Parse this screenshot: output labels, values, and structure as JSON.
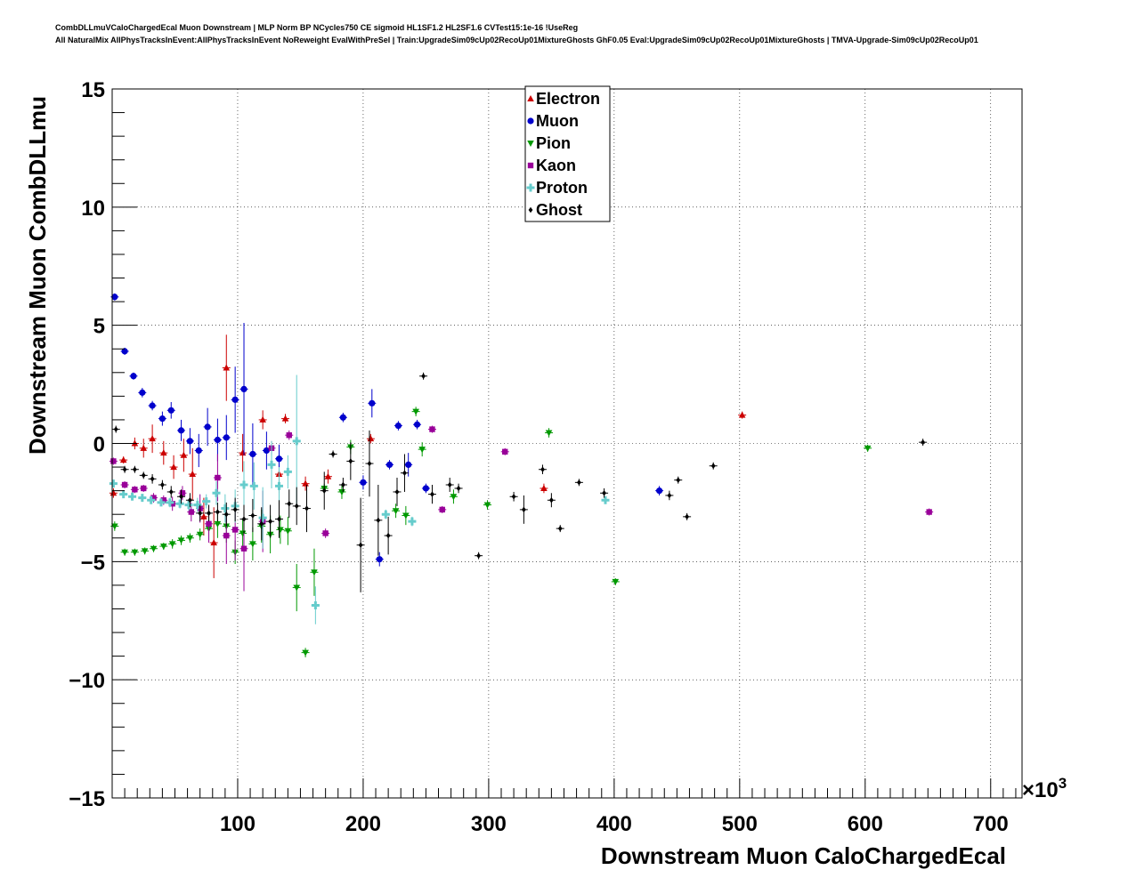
{
  "header": {
    "title_line1": "CombDLLmuVCaloChargedEcal Muon Downstream | MLP Norm BP NCycles750 CE sigmoid HL1SF1.2 HL2SF1.6 CVTest15:1e-16 !UseReg",
    "title_line2": "All NaturalMix AllPhysTracksInEvent:AllPhysTracksInEvent NoReweight EvalWithPreSel | Train:UpgradeSim09cUp02RecoUp01MixtureGhosts GhF0.05 Eval:UpgradeSim09cUp02RecoUp01MixtureGhosts | TMVA-Upgrade-Sim09cUp02RecoUp01"
  },
  "chart_data": {
    "type": "scatter",
    "xlabel": "Downstream Muon CaloChargedEcal",
    "ylabel": "Downstream Muon CombDLLmu",
    "x_multiplier": "×10",
    "x_multiplier_exp": "3",
    "xlim": [
      0,
      725
    ],
    "ylim": [
      -15,
      15
    ],
    "x_ticks": [
      100,
      200,
      300,
      400,
      500,
      600,
      700
    ],
    "y_ticks": [
      -15,
      -10,
      -5,
      0,
      5,
      10,
      15
    ],
    "y_tick_labels": [
      "−15",
      "−10",
      "−5",
      "0",
      "5",
      "10",
      "15"
    ],
    "grid": true,
    "legend_position": "top-center",
    "series": [
      {
        "name": "Electron",
        "color": "#cc0000",
        "marker": "triangle",
        "points": [
          [
            1,
            -2.1,
            0.2
          ],
          [
            9,
            -0.7,
            0.15
          ],
          [
            18,
            0.0,
            0.25
          ],
          [
            25,
            -0.2,
            0.4
          ],
          [
            32,
            0.2,
            0.6
          ],
          [
            41,
            -0.4,
            0.5
          ],
          [
            49,
            -1.0,
            0.5
          ],
          [
            57,
            -0.5,
            0.7
          ],
          [
            64,
            -1.3,
            1.1
          ],
          [
            73,
            -3.1,
            0.8
          ],
          [
            81,
            -4.2,
            1.5
          ],
          [
            91,
            3.2,
            1.4
          ],
          [
            104,
            -0.4,
            0.8
          ],
          [
            120,
            1.0,
            0.4
          ],
          [
            133,
            -1.3,
            0.8
          ],
          [
            138,
            1.05,
            0.2
          ],
          [
            154,
            -1.7,
            0.3
          ],
          [
            172,
            -1.4,
            0.3
          ],
          [
            206,
            0.2,
            0.2
          ],
          [
            344,
            -1.9,
            0.2
          ],
          [
            502,
            1.2,
            0.15
          ]
        ]
      },
      {
        "name": "Muon",
        "color": "#0000cc",
        "marker": "circle",
        "points": [
          [
            2,
            6.2,
            0.15
          ],
          [
            10,
            3.9,
            0.15
          ],
          [
            17,
            2.85,
            0.15
          ],
          [
            24,
            2.15,
            0.2
          ],
          [
            32,
            1.6,
            0.2
          ],
          [
            40,
            1.05,
            0.3
          ],
          [
            47,
            1.4,
            0.35
          ],
          [
            55,
            0.55,
            0.45
          ],
          [
            62,
            0.1,
            0.55
          ],
          [
            69,
            -0.3,
            0.7
          ],
          [
            76,
            0.7,
            0.8
          ],
          [
            84,
            0.15,
            0.9
          ],
          [
            91,
            0.25,
            0.95
          ],
          [
            98,
            1.85,
            1.4
          ],
          [
            105,
            2.3,
            2.8
          ],
          [
            112,
            -0.45,
            1.3
          ],
          [
            123,
            -0.3,
            0.8
          ],
          [
            133,
            -0.65,
            0.6
          ],
          [
            184,
            1.1,
            0.2
          ],
          [
            200,
            -1.65,
            0.3
          ],
          [
            207,
            1.7,
            0.6
          ],
          [
            213,
            -4.9,
            0.3
          ],
          [
            221,
            -0.9,
            0.2
          ],
          [
            228,
            0.75,
            0.2
          ],
          [
            236,
            -0.9,
            0.5
          ],
          [
            243,
            0.8,
            0.2
          ],
          [
            250,
            -1.9,
            0.2
          ],
          [
            436,
            -2.0,
            0.2
          ]
        ]
      },
      {
        "name": "Pion",
        "color": "#009900",
        "marker": "triangle-down",
        "points": [
          [
            2,
            -3.5,
            0.2
          ],
          [
            10,
            -4.6,
            0.15
          ],
          [
            18,
            -4.6,
            0.15
          ],
          [
            26,
            -4.55,
            0.15
          ],
          [
            33,
            -4.45,
            0.15
          ],
          [
            41,
            -4.35,
            0.15
          ],
          [
            48,
            -4.25,
            0.2
          ],
          [
            55,
            -4.1,
            0.2
          ],
          [
            62,
            -4.0,
            0.2
          ],
          [
            70,
            -3.85,
            0.25
          ],
          [
            77,
            -3.6,
            0.5
          ],
          [
            84,
            -3.4,
            0.6
          ],
          [
            91,
            -3.5,
            0.7
          ],
          [
            98,
            -4.6,
            0.5
          ],
          [
            104,
            -3.8,
            0.6
          ],
          [
            112,
            -4.25,
            0.7
          ],
          [
            119,
            -3.5,
            0.7
          ],
          [
            126,
            -3.85,
            0.8
          ],
          [
            134,
            -3.65,
            0.6
          ],
          [
            140,
            -3.7,
            0.6
          ],
          [
            147,
            -6.1,
            1.0
          ],
          [
            154,
            -8.85,
            0.2
          ],
          [
            161,
            -5.45,
            1.0
          ],
          [
            169,
            -1.9,
            0.2
          ],
          [
            183,
            -2.05,
            0.3
          ],
          [
            190,
            -0.15,
            0.3
          ],
          [
            226,
            -2.85,
            0.3
          ],
          [
            234,
            -3.05,
            0.4
          ],
          [
            242,
            1.35,
            0.2
          ],
          [
            247,
            -0.25,
            0.3
          ],
          [
            272,
            -2.25,
            0.3
          ],
          [
            299,
            -2.6,
            0.2
          ],
          [
            348,
            0.45,
            0.2
          ],
          [
            401,
            -5.85,
            0.15
          ],
          [
            602,
            -0.2,
            0.15
          ]
        ]
      },
      {
        "name": "Kaon",
        "color": "#990099",
        "marker": "square",
        "points": [
          [
            1,
            -0.75,
            0.15
          ],
          [
            10,
            -1.75,
            0.15
          ],
          [
            18,
            -1.95,
            0.15
          ],
          [
            25,
            -1.9,
            0.15
          ],
          [
            33,
            -2.3,
            0.2
          ],
          [
            41,
            -2.4,
            0.2
          ],
          [
            48,
            -2.55,
            0.3
          ],
          [
            56,
            -2.1,
            0.3
          ],
          [
            63,
            -2.9,
            0.4
          ],
          [
            70,
            -2.75,
            0.6
          ],
          [
            77,
            -3.4,
            0.8
          ],
          [
            84,
            -1.45,
            1.0
          ],
          [
            91,
            -3.9,
            1.2
          ],
          [
            98,
            -3.65,
            1.3
          ],
          [
            105,
            -4.45,
            1.8
          ],
          [
            120,
            -3.3,
            1.3
          ],
          [
            127,
            -0.2,
            0.3
          ],
          [
            141,
            0.35,
            0.2
          ],
          [
            170,
            -3.8,
            0.2
          ],
          [
            255,
            0.6,
            0.15
          ],
          [
            263,
            -2.8,
            0.15
          ],
          [
            313,
            -0.35,
            0.15
          ],
          [
            651,
            -2.9,
            0.15
          ]
        ]
      },
      {
        "name": "Proton",
        "color": "#66cccc",
        "marker": "cross",
        "points": [
          [
            1,
            -1.7,
            0.1
          ],
          [
            9,
            -2.15,
            0.15
          ],
          [
            16,
            -2.25,
            0.15
          ],
          [
            24,
            -2.3,
            0.15
          ],
          [
            31,
            -2.4,
            0.15
          ],
          [
            39,
            -2.5,
            0.15
          ],
          [
            46,
            -2.5,
            0.2
          ],
          [
            54,
            -2.55,
            0.2
          ],
          [
            61,
            -2.6,
            0.25
          ],
          [
            68,
            -2.6,
            0.3
          ],
          [
            75,
            -2.45,
            0.3
          ],
          [
            83,
            -2.1,
            0.5
          ],
          [
            90,
            -2.75,
            0.6
          ],
          [
            98,
            -2.65,
            0.7
          ],
          [
            105,
            -1.75,
            1.0
          ],
          [
            113,
            -1.8,
            1.0
          ],
          [
            120,
            -3.15,
            1.3
          ],
          [
            127,
            -0.9,
            1.0
          ],
          [
            133,
            -1.8,
            0.8
          ],
          [
            140,
            -1.2,
            0.7
          ],
          [
            147,
            0.1,
            2.8
          ],
          [
            162,
            -6.85,
            0.8
          ],
          [
            218,
            -3.0,
            0.2
          ],
          [
            239,
            -3.3,
            0.2
          ],
          [
            393,
            -2.4,
            0.15
          ]
        ]
      },
      {
        "name": "Ghost",
        "color": "#000000",
        "marker": "diamond",
        "points": [
          [
            3,
            0.6,
            0.15
          ],
          [
            10,
            -1.1,
            0.15
          ],
          [
            18,
            -1.1,
            0.15
          ],
          [
            25,
            -1.35,
            0.15
          ],
          [
            32,
            -1.5,
            0.2
          ],
          [
            40,
            -1.75,
            0.2
          ],
          [
            47,
            -2.05,
            0.25
          ],
          [
            55,
            -2.25,
            0.3
          ],
          [
            62,
            -2.4,
            0.3
          ],
          [
            70,
            -2.95,
            0.35
          ],
          [
            77,
            -2.95,
            0.35
          ],
          [
            84,
            -2.9,
            0.4
          ],
          [
            91,
            -3.0,
            0.5
          ],
          [
            98,
            -2.8,
            0.5
          ],
          [
            105,
            -3.2,
            0.6
          ],
          [
            112,
            -3.05,
            0.7
          ],
          [
            119,
            -3.4,
            0.7
          ],
          [
            126,
            -3.3,
            0.7
          ],
          [
            133,
            -3.2,
            0.8
          ],
          [
            141,
            -2.55,
            0.6
          ],
          [
            147,
            -2.65,
            0.8
          ],
          [
            155,
            -2.75,
            1.0
          ],
          [
            169,
            -2.0,
            0.8
          ],
          [
            176,
            -0.45,
            0.15
          ],
          [
            184,
            -1.75,
            0.3
          ],
          [
            190,
            -0.75,
            0.8
          ],
          [
            198,
            -4.3,
            2.0
          ],
          [
            205,
            -0.85,
            1.4
          ],
          [
            212,
            -3.25,
            1.5
          ],
          [
            220,
            -3.9,
            0.8
          ],
          [
            227,
            -2.05,
            0.6
          ],
          [
            233,
            -1.25,
            0.8
          ],
          [
            248,
            2.85,
            0.15
          ],
          [
            255,
            -2.15,
            0.4
          ],
          [
            269,
            -1.75,
            0.3
          ],
          [
            276,
            -1.9,
            0.2
          ],
          [
            292,
            -4.75,
            0.15
          ],
          [
            320,
            -2.25,
            0.2
          ],
          [
            328,
            -2.8,
            0.6
          ],
          [
            343,
            -1.1,
            0.2
          ],
          [
            350,
            -2.4,
            0.3
          ],
          [
            357,
            -3.6,
            0.15
          ],
          [
            372,
            -1.65,
            0.15
          ],
          [
            392,
            -2.1,
            0.2
          ],
          [
            444,
            -2.2,
            0.2
          ],
          [
            451,
            -1.55,
            0.15
          ],
          [
            458,
            -3.1,
            0.15
          ],
          [
            479,
            -0.95,
            0.15
          ],
          [
            646,
            0.05,
            0.15
          ]
        ]
      }
    ]
  }
}
